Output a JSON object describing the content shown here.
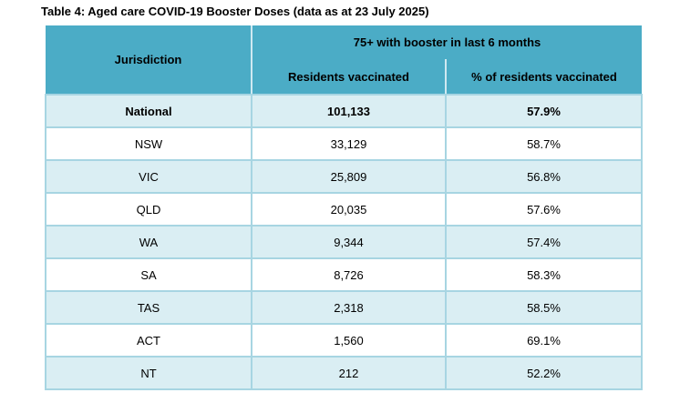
{
  "title": "Table 4: Aged care COVID-19 Booster Doses (data as at 23 July 2025)",
  "table": {
    "jurisdiction_header": "Jurisdiction",
    "group_header": "75+ with booster in last 6 months",
    "sub_headers": [
      "Residents vaccinated",
      "% of residents vaccinated"
    ],
    "rows": [
      {
        "jurisdiction": "National",
        "residents_vaccinated": "101,133",
        "pct_of_residents_vaccinated": "57.9%"
      },
      {
        "jurisdiction": "NSW",
        "residents_vaccinated": "33,129",
        "pct_of_residents_vaccinated": "58.7%"
      },
      {
        "jurisdiction": "VIC",
        "residents_vaccinated": "25,809",
        "pct_of_residents_vaccinated": "56.8%"
      },
      {
        "jurisdiction": "QLD",
        "residents_vaccinated": "20,035",
        "pct_of_residents_vaccinated": "57.6%"
      },
      {
        "jurisdiction": "WA",
        "residents_vaccinated": "9,344",
        "pct_of_residents_vaccinated": "57.4%"
      },
      {
        "jurisdiction": "SA",
        "residents_vaccinated": "8,726",
        "pct_of_residents_vaccinated": "58.3%"
      },
      {
        "jurisdiction": "TAS",
        "residents_vaccinated": "2,318",
        "pct_of_residents_vaccinated": "58.5%"
      },
      {
        "jurisdiction": "ACT",
        "residents_vaccinated": "1,560",
        "pct_of_residents_vaccinated": "69.1%"
      },
      {
        "jurisdiction": "NT",
        "residents_vaccinated": "212",
        "pct_of_residents_vaccinated": "52.2%"
      }
    ]
  },
  "colors": {
    "header_background": "#4bacc6",
    "shaded_row_background": "#daeef3",
    "cell_border": "#a7d5e2",
    "header_divider": "#cfe9f1",
    "text": "#000000"
  }
}
